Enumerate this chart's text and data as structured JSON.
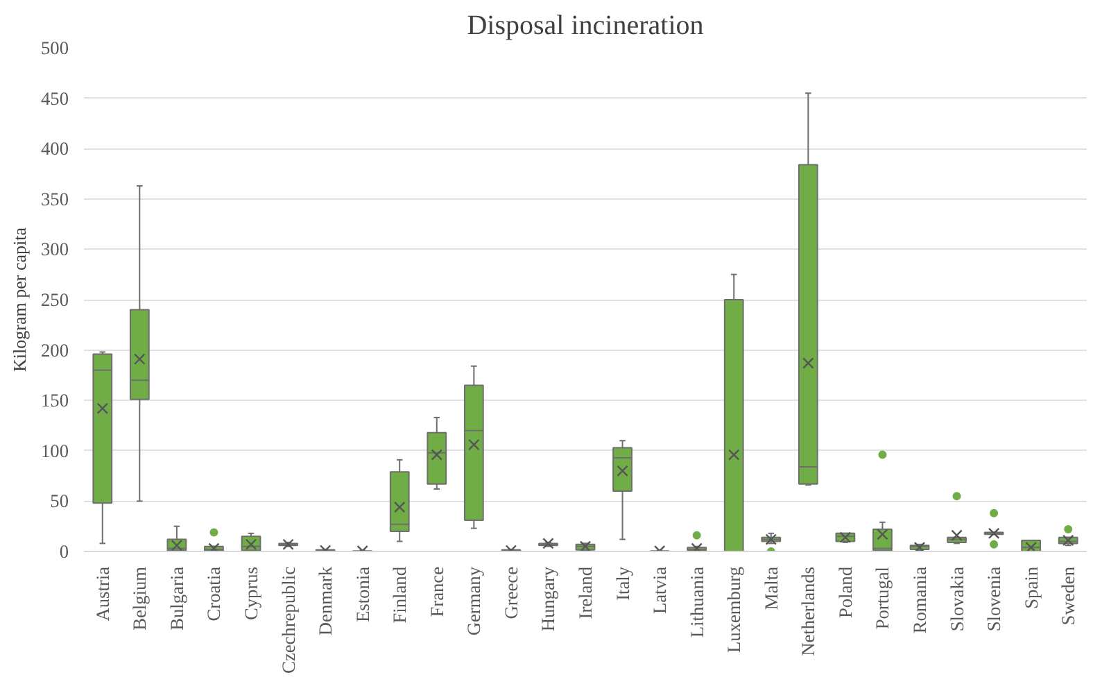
{
  "chart_data": {
    "type": "box",
    "title": "Disposal incineration",
    "ylabel": "Kilogram per capita",
    "categories": [
      "Austria",
      "Belgium",
      "Bulgaria",
      "Croatia",
      "Cyprus",
      "Czechrepublic",
      "Denmark",
      "Estonia",
      "Finland",
      "France",
      "Germany",
      "Greece",
      "Hungary",
      "Ireland",
      "Italy",
      "Latvia",
      "Lithuania",
      "Luxemburg",
      "Malta",
      "Netherlands",
      "Poland",
      "Portugal",
      "Romania",
      "Slovakia",
      "Slovenia",
      "Spain",
      "Sweden"
    ],
    "color": "#70ad47",
    "boxes": [
      {
        "low": 8,
        "q1": 48,
        "median": 180,
        "q3": 196,
        "high": 198,
        "mean": 142
      },
      {
        "low": 50,
        "q1": 151,
        "median": 170,
        "q3": 240,
        "high": 363,
        "mean": 191
      },
      {
        "low": 0,
        "q1": 1,
        "median": 3,
        "q3": 12,
        "high": 25,
        "mean": 6
      },
      {
        "low": 0,
        "q1": 0.5,
        "median": 2,
        "q3": 5,
        "high": 5,
        "mean": 3,
        "outliers": [
          19
        ]
      },
      {
        "low": 0,
        "q1": 1,
        "median": 5,
        "q3": 15,
        "high": 18,
        "mean": 7
      },
      {
        "low": 5,
        "q1": 6,
        "median": 7,
        "q3": 8,
        "high": 9,
        "mean": 7
      },
      {
        "low": 0,
        "q1": 0.5,
        "median": 1,
        "q3": 1.5,
        "high": 2,
        "mean": 1
      },
      {
        "low": 0,
        "q1": 0,
        "median": 0,
        "q3": 0.5,
        "high": 1,
        "mean": 0.5
      },
      {
        "low": 10,
        "q1": 20,
        "median": 27,
        "q3": 79,
        "high": 91,
        "mean": 44
      },
      {
        "low": 62,
        "q1": 67,
        "median": 98,
        "q3": 118,
        "high": 133,
        "mean": 96
      },
      {
        "low": 23,
        "q1": 31,
        "median": 120,
        "q3": 165,
        "high": 184,
        "mean": 106
      },
      {
        "low": 0,
        "q1": 0.5,
        "median": 1,
        "q3": 1.5,
        "high": 2,
        "mean": 1
      },
      {
        "low": 5,
        "q1": 6,
        "median": 7,
        "q3": 8,
        "high": 9,
        "mean": 8
      },
      {
        "low": 1,
        "q1": 1.5,
        "median": 5,
        "q3": 7,
        "high": 8,
        "mean": 5
      },
      {
        "low": 12,
        "q1": 60,
        "median": 93,
        "q3": 103,
        "high": 110,
        "mean": 80
      },
      {
        "low": 0,
        "q1": 0,
        "median": 0,
        "q3": 0.5,
        "high": 1,
        "mean": 0.5
      },
      {
        "low": 0,
        "q1": 1,
        "median": 2,
        "q3": 4,
        "high": 5,
        "mean": 3,
        "outliers": [
          16
        ]
      },
      {
        "low": 0,
        "q1": 0,
        "median": 0,
        "q3": 250,
        "high": 275,
        "mean": 96
      },
      {
        "low": 8,
        "q1": 10,
        "median": 12,
        "q3": 14,
        "high": 18,
        "mean": 12,
        "outliers": [
          0
        ]
      },
      {
        "low": 66,
        "q1": 67,
        "median": 84,
        "q3": 384,
        "high": 455,
        "mean": 187
      },
      {
        "low": 9,
        "q1": 10,
        "median": 15,
        "q3": 18,
        "high": 18,
        "mean": 14
      },
      {
        "low": 0,
        "q1": 1,
        "median": 3,
        "q3": 22,
        "high": 29,
        "mean": 17,
        "outliers": [
          96
        ]
      },
      {
        "low": 1,
        "q1": 2,
        "median": 5,
        "q3": 6,
        "high": 7,
        "mean": 4
      },
      {
        "low": 8,
        "q1": 9,
        "median": 12,
        "q3": 14,
        "high": 14,
        "mean": 16,
        "outliers": [
          55
        ]
      },
      {
        "low": 17,
        "q1": 17,
        "median": 18,
        "q3": 19,
        "high": 19,
        "mean": 18,
        "outliers": [
          38,
          7
        ]
      },
      {
        "low": 0,
        "q1": 0,
        "median": 4,
        "q3": 11,
        "high": 11,
        "mean": 4
      },
      {
        "low": 6,
        "q1": 8,
        "median": 10,
        "q3": 14,
        "high": 14,
        "mean": 11,
        "outliers": [
          22
        ]
      }
    ],
    "ylim": [
      0,
      500
    ],
    "yticks": [
      0,
      50,
      100,
      150,
      200,
      250,
      300,
      350,
      400,
      450,
      500
    ],
    "grid": "y"
  }
}
